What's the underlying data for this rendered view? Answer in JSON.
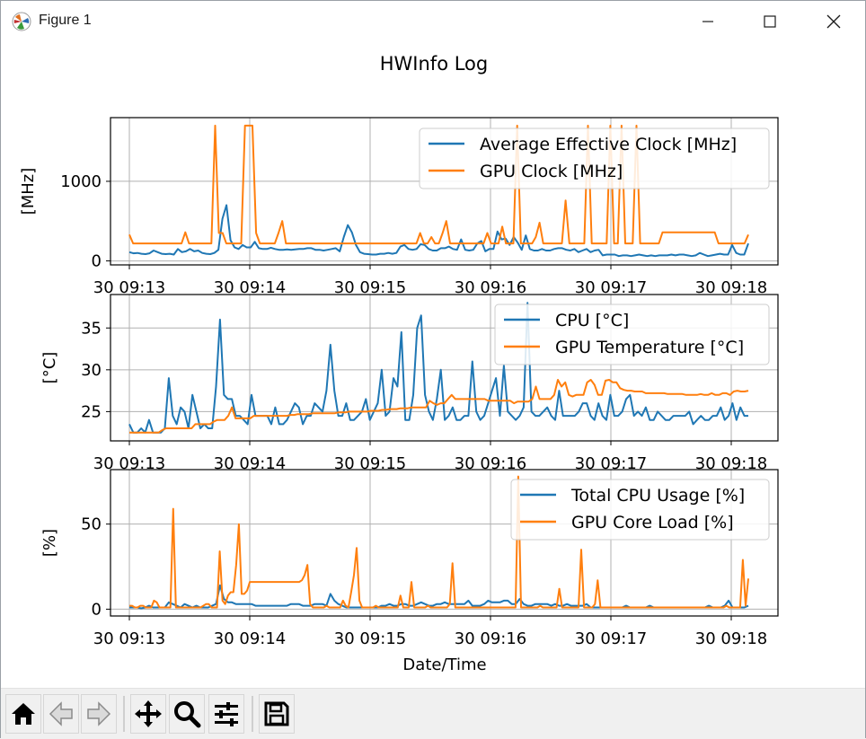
{
  "window": {
    "title": "Figure 1",
    "minimize_icon": "minimize-icon",
    "maximize_icon": "maximize-icon",
    "close_icon": "close-icon"
  },
  "figure": {
    "suptitle": "HWInfo Log",
    "xlabel": "Date/Time"
  },
  "colors": {
    "blue": "#1f77b4",
    "orange": "#ff7f0e",
    "grid": "#b0b0b0"
  },
  "toolbar": {
    "buttons": [
      {
        "name": "home-icon",
        "label": "Home"
      },
      {
        "name": "back-icon",
        "label": "Back"
      },
      {
        "name": "forward-icon",
        "label": "Forward"
      },
      {
        "name": "pan-icon",
        "label": "Pan"
      },
      {
        "name": "zoom-icon",
        "label": "Zoom"
      },
      {
        "name": "configure-subplots-icon",
        "label": "Configure subplots"
      },
      {
        "name": "save-icon",
        "label": "Save"
      }
    ]
  },
  "chart_data": [
    {
      "type": "line",
      "ylabel": "[MHz]",
      "x_ticks": [
        "30 09:13",
        "30 09:14",
        "30 09:15",
        "30 09:16",
        "30 09:17",
        "30 09:18"
      ],
      "y_ticks": [
        0,
        1000
      ],
      "ylim": [
        -50,
        1800
      ],
      "grid": true,
      "legend_position": "top-right",
      "series": [
        {
          "name": "Average Effective Clock [MHz]",
          "values": [
            110,
            95,
            100,
            90,
            85,
            95,
            130,
            110,
            90,
            85,
            90,
            80,
            150,
            110,
            120,
            150,
            120,
            130,
            100,
            90,
            85,
            100,
            140,
            530,
            700,
            260,
            170,
            150,
            200,
            170,
            170,
            240,
            160,
            150,
            150,
            165,
            150,
            140,
            140,
            145,
            140,
            145,
            150,
            150,
            160,
            160,
            140,
            140,
            130,
            140,
            150,
            160,
            120,
            300,
            450,
            360,
            200,
            110,
            90,
            85,
            80,
            80,
            90,
            90,
            100,
            90,
            100,
            180,
            200,
            150,
            140,
            150,
            210,
            200,
            150,
            130,
            130,
            160,
            160,
            180,
            150,
            140,
            270,
            140,
            130,
            140,
            220,
            250,
            120,
            150,
            150,
            370,
            270,
            280,
            200,
            300,
            230,
            140,
            320,
            150,
            130,
            130,
            150,
            130,
            130,
            150,
            160,
            160,
            140,
            130,
            150,
            110,
            130,
            150,
            110,
            130,
            140,
            70,
            80,
            80,
            80,
            60,
            70,
            70,
            60,
            70,
            80,
            70,
            60,
            70,
            60,
            70,
            70,
            70,
            80,
            70,
            80,
            80,
            70,
            60,
            70,
            100,
            80,
            60,
            70,
            80,
            90,
            80,
            80,
            200,
            100,
            80,
            80,
            220
          ]
        },
        {
          "name": "GPU Clock [MHz]",
          "values": [
            330,
            220,
            220,
            220,
            220,
            220,
            220,
            220,
            220,
            220,
            220,
            220,
            220,
            220,
            220,
            360,
            220,
            220,
            220,
            220,
            220,
            220,
            220,
            1700,
            350,
            350,
            220,
            220,
            220,
            220,
            220,
            1700,
            1700,
            1700,
            350,
            220,
            220,
            220,
            220,
            220,
            350,
            500,
            220,
            220,
            220,
            220,
            220,
            220,
            220,
            220,
            220,
            220,
            220,
            220,
            220,
            220,
            220,
            220,
            220,
            220,
            220,
            220,
            220,
            220,
            220,
            220,
            220,
            220,
            220,
            220,
            220,
            220,
            220,
            220,
            220,
            220,
            220,
            220,
            350,
            220,
            220,
            300,
            220,
            220,
            350,
            500,
            220,
            220,
            220,
            220,
            220,
            220,
            220,
            220,
            220,
            220,
            350,
            220,
            220,
            220,
            430,
            220,
            220,
            220,
            1700,
            220,
            220,
            220,
            220,
            300,
            480,
            220,
            220,
            220,
            220,
            220,
            220,
            760,
            220,
            220,
            220,
            220,
            220,
            1700,
            220,
            220,
            220,
            220,
            220,
            1700,
            220,
            220,
            1700,
            220,
            220,
            220,
            1700,
            220,
            220,
            220,
            220,
            220,
            220,
            360,
            360,
            360,
            360,
            360,
            360,
            360,
            360,
            360,
            360,
            360,
            360,
            360,
            360,
            360,
            220,
            220,
            220,
            220,
            220,
            220,
            220,
            220,
            330
          ]
        }
      ]
    },
    {
      "type": "line",
      "ylabel": "[°C]",
      "x_ticks": [
        "30 09:13",
        "30 09:14",
        "30 09:15",
        "30 09:16",
        "30 09:17",
        "30 09:18"
      ],
      "y_ticks": [
        25,
        30,
        35
      ],
      "ylim": [
        21.5,
        39
      ],
      "grid": true,
      "legend_position": "top-right",
      "series": [
        {
          "name": "CPU [°C]",
          "values": [
            23.5,
            22.5,
            22.5,
            23,
            22.5,
            24,
            22.5,
            22.5,
            22.5,
            23,
            29,
            24.5,
            23.5,
            25.5,
            25,
            23,
            27,
            25,
            23,
            23.5,
            23,
            23,
            28,
            36,
            27,
            26.5,
            26.5,
            24.5,
            24.5,
            24,
            23.5,
            27,
            24.5,
            24.5,
            24.5,
            24.5,
            23.5,
            25.5,
            23.5,
            23.5,
            24,
            25,
            26,
            25.5,
            23.5,
            24.5,
            24.5,
            26,
            25.5,
            25,
            27.5,
            33,
            27.5,
            24.5,
            24.5,
            26,
            24,
            24,
            24.5,
            25,
            26.5,
            24,
            25,
            26,
            30,
            24.5,
            25,
            29,
            28,
            34.5,
            24,
            24,
            27,
            35,
            36.5,
            27,
            25,
            24,
            26.5,
            30,
            24,
            24.5,
            25.5,
            24,
            24,
            24.5,
            24.5,
            31,
            25,
            24,
            24.5,
            26,
            27.5,
            29,
            24.5,
            30.5,
            25,
            24.5,
            24,
            24.5,
            25.5,
            38,
            25,
            24.5,
            24.5,
            25,
            25.5,
            24.5,
            24,
            27.5,
            24.5,
            24.5,
            24.5,
            24.5,
            25,
            26,
            26,
            24.5,
            24,
            26,
            24.5,
            24,
            27,
            24.5,
            24.5,
            25,
            26.5,
            27,
            24.5,
            25,
            24.5,
            25.5,
            24,
            24,
            25,
            24.5,
            24,
            24,
            24.5,
            24.5,
            24.5,
            24.5,
            25,
            23.5,
            24,
            24.5,
            24,
            24,
            24.5,
            24.5,
            25.5,
            24,
            24.5,
            26,
            24,
            25.5,
            24.5,
            24.5
          ]
        },
        {
          "name": "GPU Temperature [°C]",
          "values": [
            22.5,
            22.5,
            22.5,
            22.5,
            22.5,
            22.5,
            22.5,
            22.5,
            22.5,
            22.8,
            23,
            23,
            23,
            23,
            23,
            23,
            23,
            23,
            23.5,
            23.5,
            23.5,
            23.5,
            23.5,
            23.8,
            24,
            24,
            24,
            24.5,
            25.5,
            24.2,
            24.2,
            24.2,
            24.2,
            24.2,
            24.5,
            24.5,
            24.5,
            24.5,
            24.5,
            24.5,
            24.5,
            24.5,
            24.5,
            24.5,
            24.6,
            24.6,
            24.7,
            24.7,
            24.7,
            24.7,
            24.8,
            24.8,
            24.8,
            24.8,
            24.8,
            24.8,
            24.8,
            24.9,
            24.9,
            24.9,
            25,
            25,
            25,
            25,
            25,
            25,
            25.1,
            25.1,
            25.1,
            25.2,
            25.2,
            25.3,
            25.3,
            25.3,
            25.4,
            25.4,
            25.4,
            25.5,
            25.5,
            25.5,
            25.5,
            25.5,
            26.3,
            26,
            25.8,
            26,
            26,
            26.5,
            27,
            26.5,
            26.5,
            26.5,
            26.5,
            26.5,
            26.5,
            26.5,
            26.5,
            26.5,
            26.3,
            26.3,
            26.3,
            26.3,
            26.3,
            26.3,
            26.3,
            26,
            26.2,
            26.2,
            26.2,
            26.2,
            26.5,
            28,
            26.5,
            26.5,
            26.5,
            26.5,
            27,
            28.8,
            28,
            28.5,
            27,
            26.8,
            27,
            27,
            27,
            28.5,
            28.8,
            28.2,
            27,
            27,
            28.7,
            28.8,
            28.5,
            28.5,
            27.8,
            27.6,
            27.5,
            27.5,
            27.4,
            27.4,
            27.4,
            27.2,
            27.2,
            27.2,
            27.2,
            27.2,
            27.2,
            27.1,
            27.1,
            27.1,
            27.1,
            27.1,
            27,
            27,
            27,
            27,
            27.1,
            27,
            27,
            27.2,
            27,
            27,
            27.2,
            27.2,
            27,
            27.4,
            27.5,
            27.4,
            27.4,
            27.5
          ]
        }
      ]
    },
    {
      "type": "line",
      "ylabel": "[%]",
      "x_ticks": [
        "30 09:13",
        "30 09:14",
        "30 09:15",
        "30 09:16",
        "30 09:17",
        "30 09:18"
      ],
      "x_axis_label": "Date/Time",
      "y_ticks": [
        0,
        50
      ],
      "ylim": [
        -4,
        82
      ],
      "grid": true,
      "legend_position": "top-right",
      "series": [
        {
          "name": "Total CPU Usage [%]",
          "values": [
            1,
            1,
            1,
            0.5,
            1,
            2,
            1,
            1,
            1,
            1,
            4,
            3,
            2,
            1,
            3,
            2,
            1,
            2,
            1,
            1,
            1,
            2,
            3,
            14,
            6,
            4,
            4,
            3,
            3,
            3,
            3,
            3,
            2,
            2,
            2,
            2,
            2,
            2,
            2,
            2,
            2,
            3,
            3,
            3,
            2,
            2,
            2,
            3,
            3,
            3,
            2,
            9,
            5,
            3,
            2,
            1,
            1,
            1,
            1,
            1,
            1,
            1,
            1,
            1,
            2,
            2,
            3,
            2,
            2,
            3,
            3,
            2,
            2,
            3,
            4,
            3,
            2,
            2,
            3,
            3,
            4,
            3,
            3,
            3,
            3,
            3,
            5,
            2,
            2,
            2,
            3,
            5,
            4,
            4,
            4,
            5,
            5,
            3,
            3,
            6,
            3,
            2,
            2,
            3,
            3,
            3,
            3,
            2,
            3,
            2,
            2,
            3,
            2,
            2,
            2,
            2,
            3,
            1,
            1,
            1,
            1,
            1,
            1,
            1,
            1,
            1,
            2,
            1,
            1,
            1,
            1,
            1,
            2,
            1,
            1,
            1,
            1,
            1,
            1,
            1,
            1,
            1,
            1,
            1,
            1,
            1,
            1,
            2,
            1,
            1,
            1,
            2,
            5,
            1,
            1,
            1,
            1,
            2
          ]
        },
        {
          "name": "GPU Core Load [%]",
          "values": [
            2,
            2,
            1,
            1,
            2,
            2,
            1,
            1,
            1,
            5,
            4,
            1,
            1,
            1,
            1,
            1,
            59,
            1,
            1,
            1,
            1,
            1,
            1,
            1,
            1,
            1,
            1,
            2,
            3,
            3,
            1,
            1,
            1,
            34,
            5,
            3,
            8,
            10,
            10,
            26,
            50,
            9,
            9,
            11,
            16,
            16,
            16,
            16,
            16,
            16,
            16,
            16,
            16,
            16,
            16,
            16,
            16,
            16,
            16,
            16,
            16,
            16,
            16,
            17,
            20,
            26,
            3,
            1,
            1,
            1,
            1,
            1,
            2,
            1,
            1,
            1,
            1,
            1,
            5,
            2,
            1,
            10,
            20,
            36,
            5,
            1,
            1,
            1,
            1,
            1,
            2,
            1,
            1,
            1,
            1,
            1,
            1,
            1,
            1,
            8,
            1,
            1,
            1,
            16,
            1,
            1,
            1,
            1,
            1,
            2,
            1,
            1,
            1,
            1,
            1,
            1,
            1,
            3,
            27,
            1,
            1,
            1,
            1,
            1,
            1,
            1,
            1,
            1,
            1,
            1,
            1,
            1,
            1,
            1,
            1,
            1,
            1,
            1,
            1,
            1,
            1,
            1,
            78,
            1,
            1,
            1,
            1,
            1,
            1,
            1,
            2,
            1,
            1,
            1,
            1,
            1,
            1,
            12,
            1,
            1,
            1,
            1,
            1,
            1,
            1,
            35,
            1,
            1,
            1,
            1,
            3,
            17,
            1,
            1,
            1,
            1,
            1,
            1,
            1,
            1,
            1,
            1,
            1,
            1,
            1,
            1,
            1,
            1,
            1,
            1,
            1,
            1,
            1,
            1,
            1,
            1,
            1,
            1,
            1,
            1,
            1,
            1,
            1,
            1,
            1,
            1,
            1,
            1,
            1,
            1,
            1,
            1,
            1,
            1,
            1,
            1,
            1,
            1,
            2,
            1,
            1,
            1,
            1,
            1,
            29,
            2,
            18
          ]
        }
      ]
    }
  ]
}
